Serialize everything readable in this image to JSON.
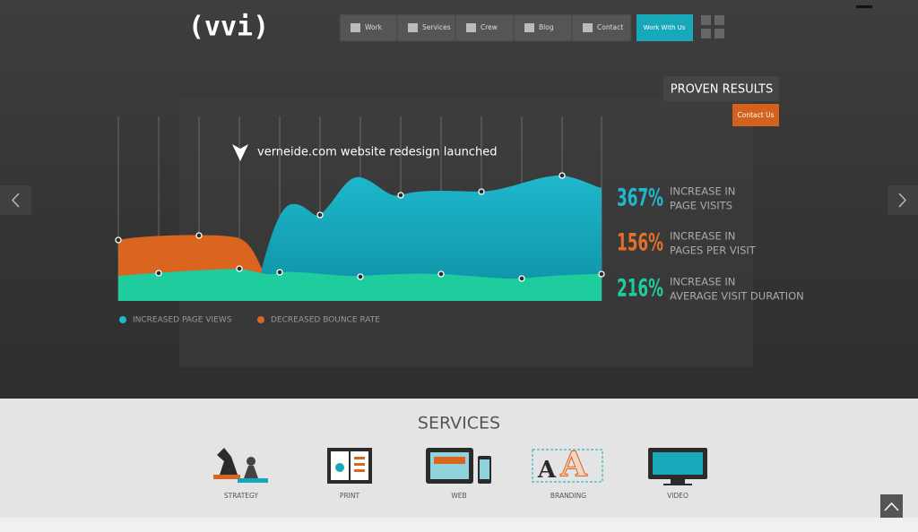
{
  "header": {
    "logo": "(vvi)",
    "nav": [
      "Work",
      "Services",
      "Crew",
      "Blog",
      "Contact"
    ],
    "cta": "Work With Us"
  },
  "hero": {
    "title": "PROVEN RESULTS",
    "button": "Contact Us",
    "annotation": "verneide.com website redesign launched",
    "legend": [
      "INCREASED PAGE VIEWS",
      "DECREASED BOUNCE RATE"
    ],
    "stats": [
      {
        "value": "367%",
        "lines": [
          "INCREASE IN",
          "PAGE VISITS"
        ]
      },
      {
        "value": "156%",
        "lines": [
          "INCREASE IN",
          "PAGES PER VISIT"
        ]
      },
      {
        "value": "216%",
        "lines": [
          "INCREASE IN",
          "AVERAGE VISIT DURATION"
        ]
      }
    ]
  },
  "services": {
    "title": "SERVICES",
    "items": [
      "STRATEGY",
      "PRINT",
      "WEB",
      "BRANDING",
      "VIDEO"
    ]
  }
}
